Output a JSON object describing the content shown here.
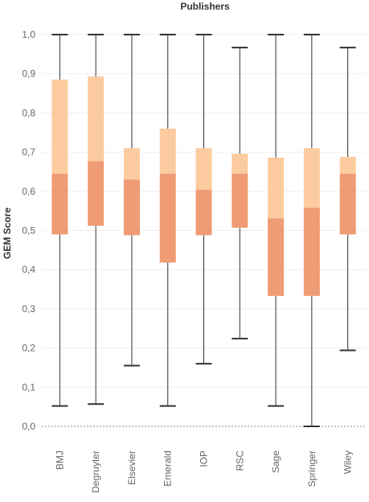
{
  "chart_data": {
    "type": "boxplot",
    "title": "Publishers",
    "ylabel": "GEM Score",
    "xlabel": "",
    "ylim": [
      0.0,
      1.0
    ],
    "yticks": [
      0.0,
      0.1,
      0.2,
      0.3,
      0.4,
      0.5,
      0.6,
      0.7,
      0.8,
      0.9,
      1.0
    ],
    "ytick_labels": [
      "0,0",
      "0,1",
      "0,2",
      "0,3",
      "0,4",
      "0,5",
      "0,6",
      "0,7",
      "0,8",
      "0,9",
      "1,0"
    ],
    "grid": true,
    "zero_line": "dotted",
    "colors": {
      "lower_box": "#ef9c74",
      "upper_box": "#fccb9f",
      "whisker": "#333333",
      "grid": "#efefef",
      "zero_line": "#888888"
    },
    "categories": [
      "BMJ",
      "Degruyter",
      "Elsevier",
      "Emerald",
      "IOP",
      "RSC",
      "Sage",
      "Springer",
      "Wiley"
    ],
    "series": [
      {
        "category": "BMJ",
        "min": 0.052,
        "q1": 0.49,
        "median": 0.645,
        "q3": 0.885,
        "max": 1.0
      },
      {
        "category": "Degruyter",
        "min": 0.057,
        "q1": 0.512,
        "median": 0.677,
        "q3": 0.893,
        "max": 1.0
      },
      {
        "category": "Elsevier",
        "min": 0.155,
        "q1": 0.488,
        "median": 0.63,
        "q3": 0.71,
        "max": 1.0
      },
      {
        "category": "Emerald",
        "min": 0.052,
        "q1": 0.418,
        "median": 0.645,
        "q3": 0.76,
        "max": 1.0
      },
      {
        "category": "IOP",
        "min": 0.16,
        "q1": 0.488,
        "median": 0.604,
        "q3": 0.71,
        "max": 1.0
      },
      {
        "category": "RSC",
        "min": 0.224,
        "q1": 0.507,
        "median": 0.645,
        "q3": 0.696,
        "max": 0.967
      },
      {
        "category": "Sage",
        "min": 0.052,
        "q1": 0.333,
        "median": 0.531,
        "q3": 0.686,
        "max": 1.0
      },
      {
        "category": "Springer",
        "min": 0.0,
        "q1": 0.333,
        "median": 0.558,
        "q3": 0.71,
        "max": 1.0
      },
      {
        "category": "Wiley",
        "min": 0.194,
        "q1": 0.49,
        "median": 0.645,
        "q3": 0.688,
        "max": 0.967
      }
    ]
  }
}
